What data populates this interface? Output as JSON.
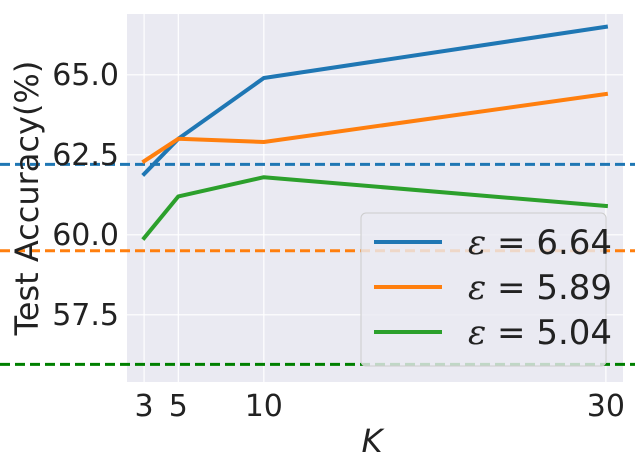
{
  "chart_data": {
    "type": "line",
    "xlabel": "K",
    "ylabel": "Test Accuracy(%)",
    "x": [
      3,
      5,
      10,
      30
    ],
    "xticks": [
      "3",
      "5",
      "10",
      "30"
    ],
    "xlim": [
      2.0,
      31.0
    ],
    "ylim": [
      55.4,
      66.9
    ],
    "yticks": [
      "57.5",
      "60.0",
      "62.5",
      "65.0"
    ],
    "grid": true,
    "style": "seaborn darkgrid",
    "legend_position": "lower-right",
    "series": [
      {
        "name": "ε = 6.64",
        "symbol": "ε",
        "value": "= 6.64",
        "color": "#1f77b4",
        "values": [
          61.9,
          63.0,
          64.9,
          66.5
        ],
        "baseline": 62.2
      },
      {
        "name": "ε = 5.89",
        "symbol": "ε",
        "value": "= 5.89",
        "color": "#ff7f0e",
        "values": [
          62.3,
          63.0,
          62.9,
          64.4
        ],
        "baseline": 59.5
      },
      {
        "name": "ε = 5.04",
        "symbol": "ε",
        "value": "= 5.04",
        "color": "#2ca02c",
        "values": [
          59.9,
          61.2,
          61.8,
          60.9
        ],
        "baseline": 55.95,
        "baseline_color": "#008000"
      }
    ]
  }
}
